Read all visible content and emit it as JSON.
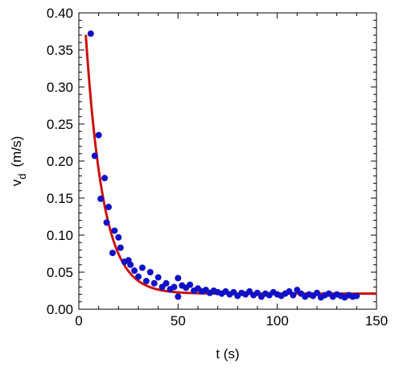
{
  "chart_data": {
    "type": "scatter",
    "title": "",
    "xlabel": "t (s)",
    "ylabel_main": "v",
    "ylabel_sub": "d",
    "ylabel_unit": "(m/s)",
    "xlim": [
      0,
      150
    ],
    "ylim": [
      0,
      0.4
    ],
    "xticks": [
      0,
      50,
      100,
      150
    ],
    "xtick_labels": [
      "0",
      "50",
      "100",
      "150"
    ],
    "yticks": [
      0,
      0.05,
      0.1,
      0.15,
      0.2,
      0.25,
      0.3,
      0.35,
      0.4
    ],
    "ytick_labels": [
      "0.00",
      "0.05",
      "0.10",
      "0.15",
      "0.20",
      "0.25",
      "0.30",
      "0.35",
      "0.40"
    ],
    "grid": false,
    "legend": "none",
    "colors": {
      "points": "#1010c8",
      "fit": "#cc1010"
    },
    "series": [
      {
        "kind": "points",
        "x": [
          6,
          8,
          10,
          11,
          13,
          14,
          15,
          17,
          18,
          20,
          21,
          23,
          25,
          26,
          28,
          30,
          32,
          34,
          36,
          38,
          40,
          42,
          44,
          46,
          48,
          50,
          50,
          52,
          54,
          56,
          58,
          60,
          62,
          64,
          66,
          68,
          70,
          72,
          74,
          76,
          78,
          80,
          82,
          84,
          86,
          88,
          90,
          92,
          94,
          96,
          98,
          100,
          102,
          104,
          106,
          108,
          110,
          112,
          114,
          116,
          118,
          120,
          122,
          124,
          126,
          128,
          130,
          132,
          134,
          136,
          138,
          140
        ],
        "y": [
          0.372,
          0.207,
          0.235,
          0.149,
          0.177,
          0.117,
          0.138,
          0.076,
          0.106,
          0.097,
          0.083,
          0.064,
          0.066,
          0.06,
          0.052,
          0.044,
          0.056,
          0.038,
          0.05,
          0.035,
          0.043,
          0.03,
          0.035,
          0.027,
          0.03,
          0.042,
          0.017,
          0.032,
          0.029,
          0.033,
          0.025,
          0.028,
          0.024,
          0.026,
          0.022,
          0.025,
          0.023,
          0.021,
          0.024,
          0.02,
          0.023,
          0.018,
          0.022,
          0.02,
          0.024,
          0.019,
          0.022,
          0.017,
          0.021,
          0.019,
          0.023,
          0.02,
          0.018,
          0.021,
          0.024,
          0.019,
          0.026,
          0.021,
          0.017,
          0.02,
          0.018,
          0.022,
          0.016,
          0.019,
          0.021,
          0.017,
          0.02,
          0.018,
          0.016,
          0.019,
          0.017,
          0.018
        ]
      },
      {
        "kind": "fit",
        "function": "exponential decay",
        "y_asymptote": 0.021,
        "amplitude": 0.52,
        "tau": 8.8,
        "x_range": [
          3.5,
          150
        ]
      }
    ]
  }
}
